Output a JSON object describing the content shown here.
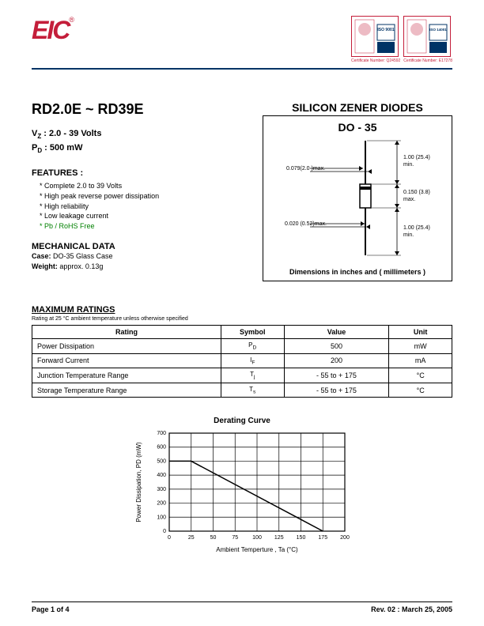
{
  "header": {
    "logo_text": "EIC",
    "logo_reg": "®",
    "cert1_label": "Certificate Number: Q24592",
    "cert2_label": "Certificate Number: E17278",
    "iso1": "ISO 9001",
    "iso2": "ISO 14001"
  },
  "part": {
    "title": "RD2.0E ~ RD39E",
    "vz_label": "V",
    "vz_sub": "Z",
    "vz_value": " : 2.0 - 39 Volts",
    "pd_label": "P",
    "pd_sub": "D",
    "pd_value": " : 500 mW"
  },
  "features": {
    "title": "FEATURES :",
    "items": [
      "* Complete 2.0  to 39 Volts",
      "* High peak reverse power dissipation",
      "* High reliability",
      "* Low leakage current",
      "* Pb / RoHS Free"
    ]
  },
  "mechanical": {
    "title": "MECHANICAL DATA",
    "case_label": "Case:",
    "case_value": " DO-35 Glass Case",
    "weight_label": "Weight:",
    "weight_value": " approx. 0.13g"
  },
  "package": {
    "main_title": "SILICON ZENER DIODES",
    "subtitle": "DO - 35",
    "dims": {
      "lead_dia": "0.079(2.0 )max.",
      "lead_len_top": "1.00 (25.4)\nmin.",
      "body_len": "0.150 (3.8)\nmax.",
      "body_dia": "0.020 (0.52)max.",
      "lead_len_bot": "1.00 (25.4)\nmin."
    },
    "caption": "Dimensions in inches and ( millimeters )"
  },
  "ratings": {
    "title": "MAXIMUM RATINGS",
    "note": "Rating at 25 °C ambient temperature unless otherwise specified",
    "columns": [
      "Rating",
      "Symbol",
      "Value",
      "Unit"
    ],
    "rows": [
      {
        "label": "Power Dissipation",
        "symbol": "P",
        "sub": "D",
        "value": "500",
        "unit": "mW"
      },
      {
        "label": "Forward Current",
        "symbol": "I",
        "sub": "F",
        "value": "200",
        "unit": "mA"
      },
      {
        "label": "Junction Temperature Range",
        "symbol": "T",
        "sub": "j",
        "value": "- 55 to + 175",
        "unit": "°C"
      },
      {
        "label": "Storage Temperature Range",
        "symbol": "T",
        "sub": "s",
        "value": "- 55 to + 175",
        "unit": "°C"
      }
    ]
  },
  "chart": {
    "title": "Derating Curve",
    "type": "line",
    "xlabel": "Ambient Temperture , Ta (°C)",
    "ylabel": "Power Dissipation, PD (mW)",
    "xlim": [
      0,
      200
    ],
    "ylim": [
      0,
      700
    ],
    "xtick_step": 25,
    "ytick_step": 100,
    "xticks": [
      0,
      25,
      50,
      75,
      100,
      125,
      150,
      175,
      200
    ],
    "yticks": [
      0,
      100,
      200,
      300,
      400,
      500,
      600,
      700
    ],
    "line_color": "#000000",
    "line_width": 1.5,
    "grid_color": "#000000",
    "background_color": "#ffffff",
    "series": {
      "x": [
        0,
        25,
        175
      ],
      "y": [
        500,
        500,
        0
      ]
    },
    "label_fontsize": 8,
    "tick_fontsize": 7
  },
  "footer": {
    "page": "Page 1 of 4",
    "rev": "Rev. 02 : March 25, 2005"
  },
  "colors": {
    "brand_red": "#c41e3a",
    "rule_blue": "#003366",
    "text": "#000000",
    "green": "#008000"
  }
}
